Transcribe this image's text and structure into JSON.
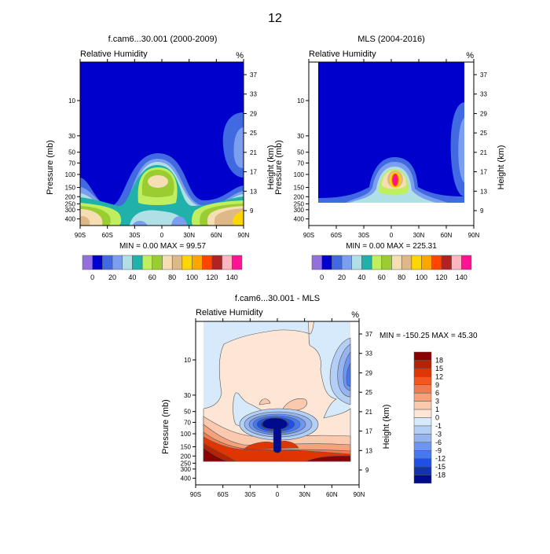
{
  "page_title": "12",
  "axes": {
    "x_ticks": [
      "90S",
      "60S",
      "30S",
      "0",
      "30N",
      "60N",
      "90N"
    ],
    "x_values": [
      -90,
      -60,
      -30,
      0,
      30,
      60,
      90
    ],
    "pressure_ticks": [
      10,
      30,
      50,
      70,
      100,
      150,
      200,
      250,
      300,
      400
    ],
    "height_ticks": [
      37,
      33,
      29,
      25,
      21,
      17,
      13,
      9
    ],
    "ylabel": "Pressure (mb)",
    "ylabel_right": "Height (km)"
  },
  "panels": [
    {
      "title": "f.cam6...30.001 (2000-2009)",
      "subtitle": "Relative Humidity",
      "units": "%",
      "stats": "MIN =   0.00  MAX =  99.57"
    },
    {
      "title": "MLS (2004-2016)",
      "subtitle": "Relative Humidity",
      "units": "%",
      "stats": "MIN =   0.00  MAX = 225.31"
    },
    {
      "title": "f.cam6...30.001 - MLS",
      "subtitle": "Relative Humidity",
      "units": "%",
      "stats": "MIN = -150.25  MAX =  45.30"
    }
  ],
  "colorbar_abs": {
    "labels": [
      "0",
      "20",
      "40",
      "60",
      "80",
      "100",
      "120",
      "140"
    ],
    "colors": [
      "#9370DB",
      "#0000CD",
      "#4169E1",
      "#7B9EEE",
      "#B0E0E6",
      "#20B2AA",
      "#BFEF5F",
      "#9ACD32",
      "#F5DEB3",
      "#DEB887",
      "#FFD700",
      "#FFA500",
      "#FF4500",
      "#B22222",
      "#FFB6C1",
      "#FF1493"
    ]
  },
  "colorbar_diff": {
    "labels": [
      "18",
      "15",
      "12",
      "9",
      "6",
      "3",
      "1",
      "0",
      "-1",
      "-3",
      "-6",
      "-9",
      "-12",
      "-15",
      "-18"
    ],
    "colors": [
      "#8B0000",
      "#B82200",
      "#E03500",
      "#F5551E",
      "#F27A4E",
      "#F5A27C",
      "#FBC9AE",
      "#FDE6D6",
      "#D6EAFB",
      "#B4CFF5",
      "#96B4F0",
      "#6E96F0",
      "#4678F0",
      "#1E50E6",
      "#1432B4",
      "#000A8C"
    ]
  },
  "chart_data": [
    {
      "type": "heatmap",
      "title": "f.cam6...30.001 (2000-2009)",
      "variable": "Relative Humidity",
      "units": "%",
      "xlabel": "",
      "ylabel": "Pressure (mb)",
      "ylabel_right": "Height (km)",
      "xlim": [
        -90,
        90
      ],
      "ylim_pressure": [
        500,
        2
      ],
      "min": 0.0,
      "max": 99.57,
      "contour_levels": [
        0,
        10,
        20,
        30,
        40,
        50,
        60,
        70,
        80,
        90,
        100,
        110,
        120,
        130,
        140
      ]
    },
    {
      "type": "heatmap",
      "title": "MLS (2004-2016)",
      "variable": "Relative Humidity",
      "units": "%",
      "xlabel": "",
      "ylabel": "Pressure (mb)",
      "ylabel_right": "Height (km)",
      "xlim": [
        -90,
        90
      ],
      "ylim_pressure": [
        500,
        2
      ],
      "min": 0.0,
      "max": 225.31,
      "contour_levels": [
        0,
        10,
        20,
        30,
        40,
        50,
        60,
        70,
        80,
        90,
        100,
        110,
        120,
        130,
        140
      ]
    },
    {
      "type": "heatmap",
      "title": "f.cam6...30.001 - MLS",
      "variable": "Relative Humidity",
      "units": "%",
      "xlabel": "",
      "ylabel": "Pressure (mb)",
      "ylabel_right": "Height (km)",
      "xlim": [
        -90,
        90
      ],
      "ylim_pressure": [
        500,
        2
      ],
      "min": -150.25,
      "max": 45.3,
      "contour_levels": [
        -18,
        -15,
        -12,
        -9,
        -6,
        -3,
        -1,
        0,
        1,
        3,
        6,
        9,
        12,
        15,
        18
      ]
    }
  ]
}
